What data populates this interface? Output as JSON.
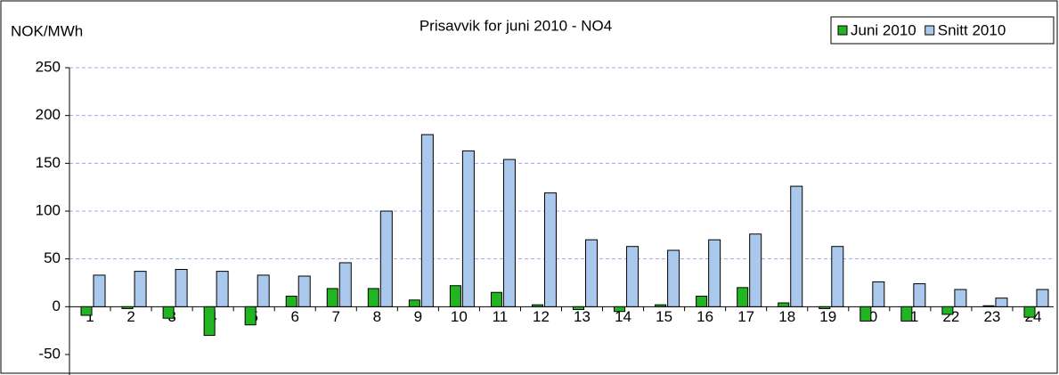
{
  "chart_data": {
    "type": "bar",
    "title": "Prisavvik for juni 2010 - NO4",
    "y_label": "NOK/MWh",
    "categories": [
      "1",
      "2",
      "3",
      "4",
      "5",
      "6",
      "7",
      "8",
      "9",
      "10",
      "11",
      "12",
      "13",
      "14",
      "15",
      "16",
      "17",
      "18",
      "19",
      "20",
      "21",
      "22",
      "23",
      "24"
    ],
    "series": [
      {
        "name": "Juni 2010",
        "color": "#22b522",
        "values": [
          -9,
          -2,
          -12,
          -30,
          -19,
          11,
          19,
          19,
          7,
          22,
          15,
          2,
          -3,
          -5,
          2,
          11,
          20,
          4,
          -2,
          -15,
          -15,
          -8,
          1,
          -11
        ]
      },
      {
        "name": "Snitt 2010",
        "color": "#a9c8ec",
        "values": [
          33,
          37,
          39,
          37,
          33,
          32,
          46,
          100,
          180,
          163,
          154,
          119,
          70,
          63,
          59,
          70,
          76,
          126,
          63,
          26,
          24,
          18,
          9,
          18
        ]
      }
    ],
    "ylim": [
      -50,
      250
    ],
    "yticks": [
      -50,
      0,
      50,
      100,
      150,
      200,
      250
    ],
    "grid": true,
    "legend": "top-right"
  }
}
